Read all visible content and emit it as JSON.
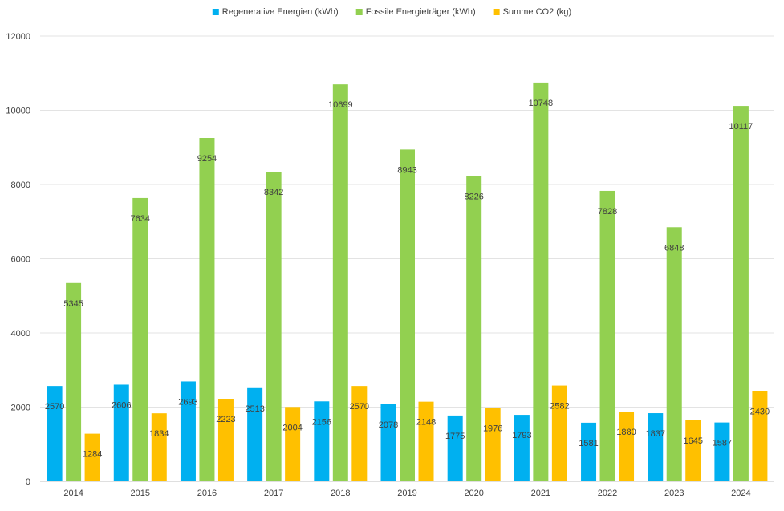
{
  "chart_data": {
    "type": "bar",
    "categories": [
      "2014",
      "2015",
      "2016",
      "2017",
      "2018",
      "2019",
      "2020",
      "2021",
      "2022",
      "2023",
      "2024"
    ],
    "series": [
      {
        "name": "Regenerative Energien (kWh)",
        "color": "#00b0f0",
        "values": [
          2570,
          2606,
          2693,
          2513,
          2156,
          2078,
          1775,
          1793,
          1581,
          1837,
          1587
        ]
      },
      {
        "name": "Fossile Energieträger (kWh)",
        "color": "#92d050",
        "values": [
          5345,
          7634,
          9254,
          8342,
          10699,
          8943,
          8226,
          10748,
          7828,
          6848,
          10117
        ]
      },
      {
        "name": "Summe CO2 (kg)",
        "color": "#ffc000",
        "values": [
          1284,
          1834,
          2223,
          2004,
          2570,
          2148,
          1976,
          2582,
          1880,
          1645,
          2430
        ]
      }
    ],
    "yticks": [
      "0",
      "2000",
      "4000",
      "6000",
      "8000",
      "10000",
      "12000"
    ],
    "ylim": [
      0,
      12000
    ],
    "title": "",
    "xlabel": "",
    "ylabel": "",
    "grid": true,
    "legend_position": "top-center"
  }
}
